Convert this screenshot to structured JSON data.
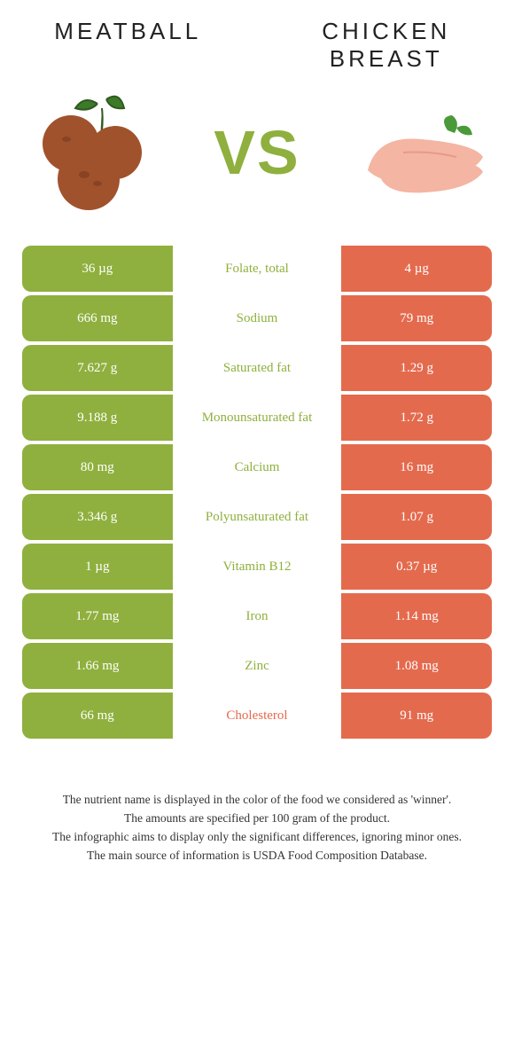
{
  "colors": {
    "left": "#8fb03e",
    "right": "#e46a4e",
    "mid_text_left_winner": "#8fb03e",
    "mid_text_right_winner": "#e46a4e"
  },
  "header": {
    "left_title": "Meatball",
    "right_title": "Chicken Breast",
    "vs": "VS"
  },
  "rows": [
    {
      "label": "Folate, total",
      "left": "36 µg",
      "right": "4 µg",
      "winner": "left"
    },
    {
      "label": "Sodium",
      "left": "666 mg",
      "right": "79 mg",
      "winner": "left"
    },
    {
      "label": "Saturated fat",
      "left": "7.627 g",
      "right": "1.29 g",
      "winner": "left"
    },
    {
      "label": "Monounsaturated fat",
      "left": "9.188 g",
      "right": "1.72 g",
      "winner": "left"
    },
    {
      "label": "Calcium",
      "left": "80 mg",
      "right": "16 mg",
      "winner": "left"
    },
    {
      "label": "Polyunsaturated fat",
      "left": "3.346 g",
      "right": "1.07 g",
      "winner": "left"
    },
    {
      "label": "Vitamin B12",
      "left": "1 µg",
      "right": "0.37 µg",
      "winner": "left"
    },
    {
      "label": "Iron",
      "left": "1.77 mg",
      "right": "1.14 mg",
      "winner": "left"
    },
    {
      "label": "Zinc",
      "left": "1.66 mg",
      "right": "1.08 mg",
      "winner": "left"
    },
    {
      "label": "Cholesterol",
      "left": "66 mg",
      "right": "91 mg",
      "winner": "right"
    }
  ],
  "footer": {
    "line1": "The nutrient name is displayed in the color of the food we considered as 'winner'.",
    "line2": "The amounts are specified per 100 gram of the product.",
    "line3": "The infographic aims to display only the significant differences, ignoring minor ones.",
    "line4": "The main source of information is USDA Food Composition Database."
  }
}
